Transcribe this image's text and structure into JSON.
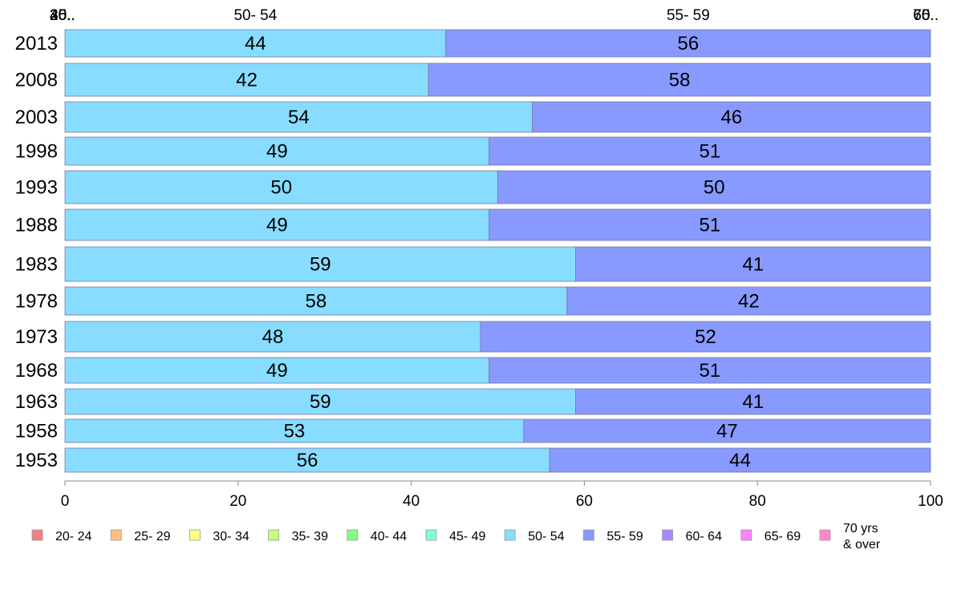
{
  "chart_data": {
    "type": "bar",
    "orientation": "horizontal",
    "stacked": true,
    "normalized": true,
    "title": "",
    "xlabel": "",
    "ylabel": "",
    "xlim": [
      0,
      100
    ],
    "x_ticks": [
      "0",
      "20",
      "40",
      "60",
      "80",
      "100"
    ],
    "grid": false,
    "legend_position": "bottom",
    "categories": [
      "2013",
      "2008",
      "2003",
      "1998",
      "1993",
      "1988",
      "1983",
      "1978",
      "1973",
      "1968",
      "1963",
      "1958",
      "1953"
    ],
    "series": [
      {
        "name": "20- 24",
        "color": "#f08080",
        "values": [
          0,
          0,
          0,
          0,
          0,
          0,
          0,
          0,
          0,
          0,
          0,
          0,
          0
        ]
      },
      {
        "name": "25- 29",
        "color": "#ffc080",
        "values": [
          0,
          0,
          0,
          0,
          0,
          0,
          0,
          0,
          0,
          0,
          0,
          0,
          0
        ]
      },
      {
        "name": "30- 34",
        "color": "#ffff80",
        "values": [
          0,
          0,
          0,
          0,
          0,
          0,
          0,
          0,
          0,
          0,
          0,
          0,
          0
        ]
      },
      {
        "name": "35- 39",
        "color": "#c0ff80",
        "values": [
          0,
          0,
          0,
          0,
          0,
          0,
          0,
          0,
          0,
          0,
          0,
          0,
          0
        ]
      },
      {
        "name": "40- 44",
        "color": "#80ff80",
        "values": [
          0,
          0,
          0,
          0,
          0,
          0,
          0,
          0,
          0,
          0,
          0,
          0,
          0
        ]
      },
      {
        "name": "45- 49",
        "color": "#80ffd8",
        "values": [
          0,
          0,
          0,
          0,
          0,
          0,
          0,
          0,
          0,
          0,
          0,
          0,
          0
        ]
      },
      {
        "name": "50- 54",
        "color": "#87dcff",
        "values": [
          44,
          42,
          54,
          49,
          50,
          49,
          59,
          58,
          48,
          49,
          59,
          53,
          56
        ]
      },
      {
        "name": "55- 59",
        "color": "#8899ff",
        "values": [
          56,
          58,
          46,
          51,
          50,
          51,
          41,
          42,
          52,
          51,
          41,
          47,
          44
        ]
      },
      {
        "name": "60- 64",
        "color": "#aa88ff",
        "values": [
          0,
          0,
          0,
          0,
          0,
          0,
          0,
          0,
          0,
          0,
          0,
          0,
          0
        ]
      },
      {
        "name": "65- 69",
        "color": "#ff80ff",
        "values": [
          0,
          0,
          0,
          0,
          0,
          0,
          0,
          0,
          0,
          0,
          0,
          0,
          0
        ]
      },
      {
        "name": "70 yrs & over",
        "color": "#ff88c8",
        "values": [
          0,
          0,
          0,
          0,
          0,
          0,
          0,
          0,
          0,
          0,
          0,
          0,
          0
        ]
      }
    ],
    "legend": [
      {
        "lines": [
          "20- 24"
        ],
        "color": "#f08080"
      },
      {
        "lines": [
          "25- 29"
        ],
        "color": "#ffc080"
      },
      {
        "lines": [
          "30- 34"
        ],
        "color": "#ffff80"
      },
      {
        "lines": [
          "35- 39"
        ],
        "color": "#c0ff80"
      },
      {
        "lines": [
          "40- 44"
        ],
        "color": "#80ff80"
      },
      {
        "lines": [
          "45- 49"
        ],
        "color": "#80ffd8"
      },
      {
        "lines": [
          "50- 54"
        ],
        "color": "#87dcff"
      },
      {
        "lines": [
          "55- 59"
        ],
        "color": "#8899ff"
      },
      {
        "lines": [
          "60- 64"
        ],
        "color": "#aa88ff"
      },
      {
        "lines": [
          "65- 69"
        ],
        "color": "#ff80ff"
      },
      {
        "lines": [
          "70 yrs",
          "& over"
        ],
        "color": "#ff88c8"
      }
    ],
    "top_labels": [
      {
        "text": "20..",
        "x": 0
      },
      {
        "text": "25..",
        "x": 0
      },
      {
        "text": "30..",
        "x": 0
      },
      {
        "text": "35..",
        "x": 0
      },
      {
        "text": "40..",
        "x": 0
      },
      {
        "text": "45..",
        "x": 0
      },
      {
        "text": "50- 54",
        "x": 22
      },
      {
        "text": "55- 59",
        "x": 72
      },
      {
        "text": "60..",
        "x": 100
      },
      {
        "text": "65..",
        "x": 100
      },
      {
        "text": "70..",
        "x": 100
      }
    ]
  }
}
